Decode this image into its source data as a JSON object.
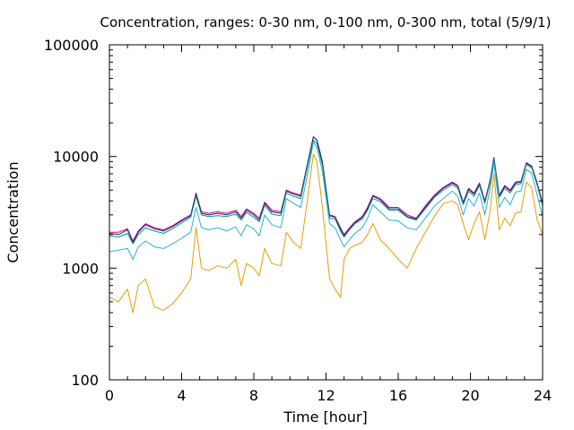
{
  "chart_data": {
    "type": "line",
    "title": "Concentration, ranges: 0-30 nm, 0-100 nm, 0-300 nm, total (5/9/1)",
    "xlabel": "Time [hour]",
    "ylabel": "Concentration",
    "xlim": [
      0,
      24
    ],
    "ylim": [
      100,
      100000
    ],
    "yscale": "log",
    "grid": false,
    "xticks": [
      0,
      4,
      8,
      12,
      16,
      20,
      24
    ],
    "xtick_labels": [
      "0",
      "4",
      "8",
      "12",
      "16",
      "20",
      "24"
    ],
    "yticks": [
      100,
      1000,
      10000,
      100000
    ],
    "ytick_labels": [
      "100",
      "1000",
      "10000",
      "100000"
    ],
    "x": [
      0,
      0.5,
      1,
      1.3,
      1.6,
      2,
      2.5,
      3,
      3.5,
      4,
      4.5,
      4.8,
      5.1,
      5.5,
      6,
      6.5,
      7,
      7.3,
      7.6,
      8,
      8.3,
      8.6,
      9,
      9.5,
      9.8,
      10.2,
      10.6,
      11,
      11.3,
      11.5,
      11.8,
      12.2,
      12.5,
      12.8,
      13,
      13.3,
      13.6,
      14,
      14.3,
      14.6,
      15,
      15.5,
      16,
      16.5,
      17,
      17.5,
      18,
      18.5,
      19,
      19.3,
      19.6,
      19.9,
      20.2,
      20.5,
      20.8,
      21.1,
      21.3,
      21.6,
      21.9,
      22.2,
      22.5,
      22.8,
      23.1,
      23.4,
      23.7,
      24
    ],
    "series": [
      {
        "color": "#e0007f",
        "values": [
          2100,
          2100,
          2250,
          1750,
          2150,
          2500,
          2300,
          2200,
          2400,
          2700,
          3000,
          4700,
          3200,
          3100,
          3200,
          3100,
          3300,
          2900,
          3400,
          3100,
          2800,
          3900,
          3300,
          3200,
          5000,
          4700,
          4500,
          9000,
          15000,
          14000,
          9000,
          3000,
          2900,
          2300,
          2000,
          2300,
          2600,
          2900,
          3500,
          4500,
          4200,
          3500,
          3500,
          3000,
          2800,
          3600,
          4500,
          5300,
          5900,
          5500,
          3900,
          5200,
          4700,
          5800,
          4000,
          6200,
          9800,
          4500,
          5500,
          5000,
          5900,
          6000,
          8800,
          8200,
          5800,
          3800
        ]
      },
      {
        "color": "#1a237e",
        "values": [
          2050,
          2000,
          2200,
          1700,
          2100,
          2450,
          2250,
          2150,
          2350,
          2650,
          2950,
          4600,
          3100,
          3000,
          3100,
          3000,
          3200,
          2800,
          3300,
          3000,
          2700,
          3800,
          3200,
          3100,
          4900,
          4600,
          4400,
          9000,
          15000,
          14000,
          8800,
          2950,
          2850,
          2250,
          1950,
          2250,
          2550,
          2850,
          3400,
          4400,
          4100,
          3400,
          3400,
          2900,
          2750,
          3500,
          4400,
          5200,
          5800,
          5400,
          3800,
          5100,
          4600,
          5700,
          3900,
          6100,
          9700,
          4400,
          5400,
          4900,
          5800,
          5900,
          8700,
          8100,
          5700,
          3700
        ]
      },
      {
        "color": "#009e73",
        "values": [
          1950,
          1900,
          2050,
          1650,
          2000,
          2300,
          2150,
          2050,
          2250,
          2550,
          2850,
          4400,
          3000,
          2900,
          2950,
          2900,
          3050,
          2700,
          3150,
          2850,
          2600,
          3650,
          3050,
          2950,
          4700,
          4400,
          4200,
          8500,
          14000,
          13000,
          8300,
          2800,
          2750,
          2150,
          1900,
          2200,
          2500,
          2750,
          3300,
          4200,
          3950,
          3300,
          3300,
          2850,
          2700,
          3400,
          4300,
          5000,
          5600,
          5200,
          3700,
          4900,
          4400,
          5500,
          3800,
          5900,
          9300,
          4300,
          5200,
          4700,
          5600,
          5700,
          8500,
          7900,
          5500,
          3600
        ]
      },
      {
        "color": "#2bb0d6",
        "values": [
          1400,
          1450,
          1500,
          1200,
          1550,
          1750,
          1550,
          1500,
          1650,
          1850,
          2100,
          3500,
          2300,
          2200,
          2300,
          2150,
          2350,
          1950,
          2450,
          2250,
          1950,
          3000,
          2450,
          2300,
          4200,
          3800,
          3500,
          7200,
          13500,
          12000,
          7300,
          2500,
          2300,
          1800,
          1550,
          1800,
          2050,
          2300,
          2800,
          3700,
          3200,
          2700,
          2650,
          2300,
          2200,
          2800,
          3600,
          4200,
          4900,
          4400,
          3000,
          4200,
          3600,
          4700,
          3000,
          5200,
          8800,
          3500,
          4300,
          3700,
          4800,
          4900,
          7700,
          7000,
          4500,
          2900
        ]
      },
      {
        "color": "#e69f00",
        "values": [
          550,
          500,
          650,
          400,
          700,
          800,
          450,
          420,
          480,
          600,
          800,
          2300,
          1000,
          950,
          1050,
          1000,
          1200,
          700,
          1100,
          1000,
          850,
          1500,
          1100,
          1050,
          2100,
          1700,
          1500,
          4500,
          10500,
          9000,
          3500,
          800,
          650,
          550,
          1200,
          1500,
          1600,
          1700,
          2000,
          2500,
          1800,
          1500,
          1200,
          1000,
          1500,
          2100,
          2900,
          3800,
          4000,
          3700,
          2500,
          1800,
          2500,
          3200,
          1800,
          3300,
          7000,
          2200,
          2800,
          2400,
          3100,
          3200,
          5900,
          5200,
          2700,
          2000
        ]
      }
    ]
  }
}
